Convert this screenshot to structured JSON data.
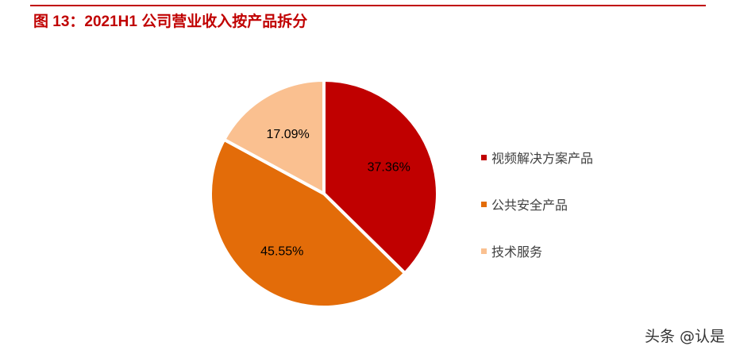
{
  "title": "图 13：2021H1 公司营业收入按产品拆分",
  "watermark": "头条 @认是",
  "chart_data": {
    "type": "pie",
    "title": "",
    "start": "12 o'clock, clockwise",
    "legend_position": "right",
    "slices": [
      {
        "name": "视频解决方案产品",
        "value": 37.36,
        "label": "37.36%",
        "color": "#c00000"
      },
      {
        "name": "公共安全产品",
        "value": 45.55,
        "label": "45.55%",
        "color": "#e36c09"
      },
      {
        "name": "技术服务",
        "value": 17.09,
        "label": "17.09%",
        "color": "#fac090"
      }
    ]
  }
}
